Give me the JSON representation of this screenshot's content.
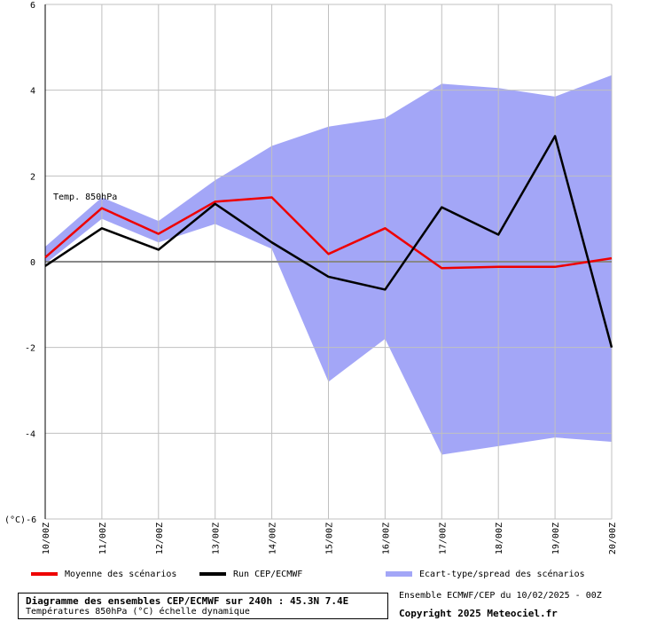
{
  "chart_data": {
    "type": "line",
    "categories": [
      "10/00Z",
      "11/00Z",
      "12/00Z",
      "13/00Z",
      "14/00Z",
      "15/00Z",
      "16/00Z",
      "17/00Z",
      "18/00Z",
      "19/00Z",
      "20/00Z"
    ],
    "ylim": [
      -6,
      6
    ],
    "yticks": [
      -6,
      -4,
      -2,
      0,
      2,
      4,
      6
    ],
    "yunit": "(°C)",
    "grid": true,
    "annotation": "Temp. 850hPa",
    "series": [
      {
        "name": "Moyenne des scénarios",
        "color": "#ee0000",
        "values": [
          0.1,
          1.25,
          0.65,
          1.4,
          1.5,
          0.18,
          0.78,
          -0.15,
          -0.12,
          -0.12,
          0.08
        ]
      },
      {
        "name": "Run CEP/ECMWF",
        "color": "#000000",
        "values": [
          -0.1,
          0.78,
          0.28,
          1.35,
          0.45,
          -0.35,
          -0.65,
          1.27,
          0.63,
          2.93,
          -2.0
        ]
      }
    ],
    "band": {
      "name": "Ecart-type/spread des scénarios",
      "color": "#a3a6f7",
      "upper": [
        0.35,
        1.5,
        0.95,
        1.9,
        2.7,
        3.15,
        3.35,
        4.15,
        4.05,
        3.85,
        4.35
      ],
      "lower": [
        -0.05,
        1.0,
        0.45,
        0.88,
        0.3,
        -2.8,
        -1.8,
        -4.5,
        -4.3,
        -4.1,
        -4.2
      ]
    }
  },
  "legend": {
    "mean": "Moyenne des scénarios",
    "run": "Run CEP/ECMWF",
    "spread": "Ecart-type/spread des scénarios"
  },
  "footer": {
    "title": "Diagramme des ensembles CEP/ECMWF sur 240h : 45.3N 7.4E",
    "subtitle": "Températures 850hPa (°C) échelle dynamique",
    "ensemble": "Ensemble ECMWF/CEP du 10/02/2025 - 00Z",
    "copyright": "Copyright 2025 Meteociel.fr"
  },
  "colors": {
    "mean": "#ee0000",
    "run": "#000000",
    "spread": "#a3a6f7",
    "grid": "#c0c0c0"
  }
}
